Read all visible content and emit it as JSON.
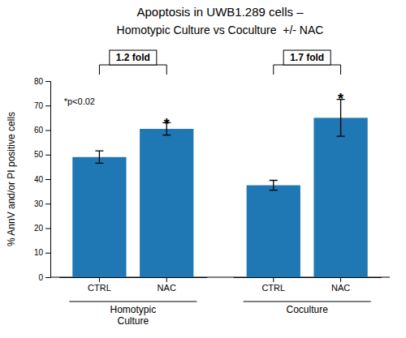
{
  "chart_data": {
    "type": "bar",
    "title": "Apoptosis in UWB1.289 cells –",
    "subtitle": "Homotypic Culture vs Coculture  +/- NAC",
    "categories": [
      "CTRL",
      "NAC",
      "CTRL",
      "NAC"
    ],
    "values": [
      49.0,
      60.5,
      37.5,
      65.0
    ],
    "errors": [
      2.5,
      2.5,
      2.0,
      7.5
    ],
    "group_labels": [
      "Homotypic\nCulture",
      "Coculture"
    ],
    "fold_labels": [
      "1.2 fold",
      "1.7 fold"
    ],
    "significance": [
      null,
      "*",
      null,
      "*"
    ],
    "significance_y": [
      null,
      64.0,
      null,
      74.5
    ],
    "note": "*p<0.02",
    "ylabel": "% AnnV and/or PI positive cells",
    "ylim": [
      0,
      80
    ],
    "yticks": [
      0,
      10,
      20,
      30,
      40,
      50,
      60,
      70,
      80
    ],
    "grid": false
  }
}
